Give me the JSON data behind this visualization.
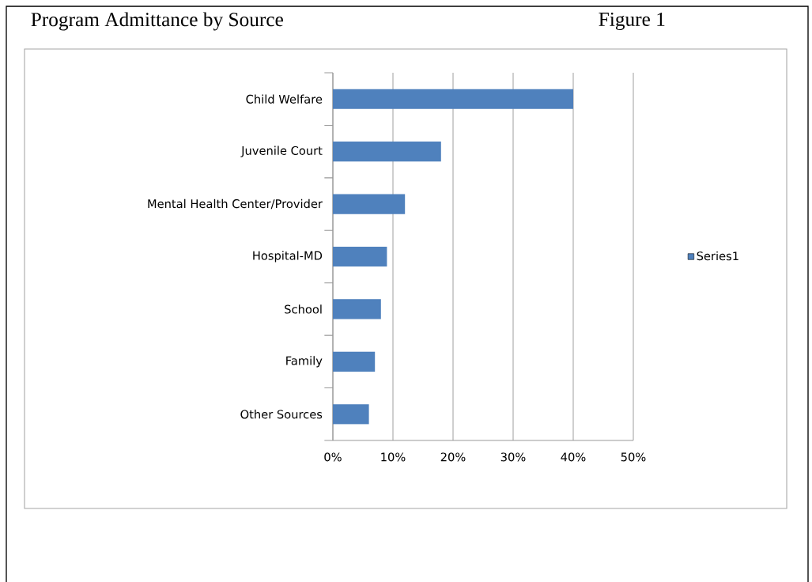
{
  "chart_data": {
    "type": "bar",
    "orientation": "horizontal",
    "title": "Program Admittance by Source",
    "annotations": [
      "Figure 1"
    ],
    "categories": [
      "Child Welfare",
      "Juvenile Court",
      "Mental Health Center/Provider",
      "Hospital-MD",
      "School",
      "Family",
      "Other Sources"
    ],
    "series": [
      {
        "name": "Series1",
        "color": "#4f81bd",
        "values": [
          40,
          18,
          12,
          9,
          8,
          7,
          6
        ]
      }
    ],
    "xlim": [
      0,
      50
    ],
    "xticks": [
      {
        "value": 0,
        "label": "0%"
      },
      {
        "value": 10,
        "label": "10%"
      },
      {
        "value": 20,
        "label": "20%"
      },
      {
        "value": 30,
        "label": "30%"
      },
      {
        "value": 40,
        "label": "40%"
      },
      {
        "value": 50,
        "label": "50%"
      }
    ],
    "grid": "x",
    "legend": "right"
  }
}
